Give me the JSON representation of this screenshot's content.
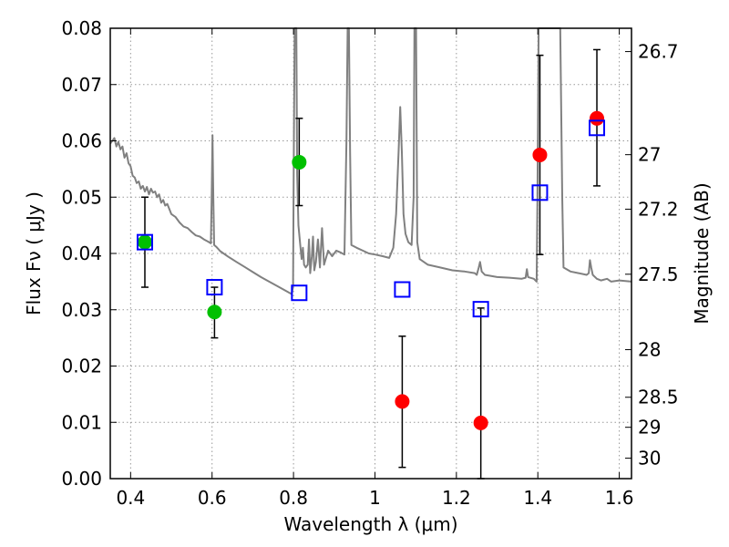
{
  "chart_data": {
    "type": "scatter",
    "xlabel": "Wavelength  λ (μm)",
    "ylabel": "Flux  Fν  ( μJy )",
    "y2label": "Magnitude (AB)",
    "xlim": [
      0.35,
      1.63
    ],
    "ylim": [
      0.0,
      0.08
    ],
    "grid": true,
    "x_ticks": [
      0.4,
      0.6,
      0.8,
      1.0,
      1.2,
      1.4,
      1.6
    ],
    "x_tick_labels": [
      "0.4",
      "0.6",
      "0.8",
      "1",
      "1.2",
      "1.4",
      "1.6"
    ],
    "y_ticks": [
      0.0,
      0.01,
      0.02,
      0.03,
      0.04,
      0.05,
      0.06,
      0.07,
      0.08
    ],
    "y_tick_labels": [
      "0.00",
      "0.01",
      "0.02",
      "0.03",
      "0.04",
      "0.05",
      "0.06",
      "0.07",
      "0.08"
    ],
    "y2_ticks": [
      {
        "label": "26.7",
        "value": 26.7
      },
      {
        "label": "27",
        "value": 27.0
      },
      {
        "label": "27.2",
        "value": 27.2
      },
      {
        "label": "27.5",
        "value": 27.5
      },
      {
        "label": "28",
        "value": 28.0
      },
      {
        "label": "28.5",
        "value": 28.5
      },
      {
        "label": "29",
        "value": 29.0
      },
      {
        "label": "30",
        "value": 30.0
      }
    ],
    "colors": {
      "spectrum": "#808080",
      "green": "#00c000",
      "red": "#ff0000",
      "model_box": "#0000ff",
      "errorbar": "#000000",
      "grid": "#999999"
    },
    "series": [
      {
        "marker": "circle",
        "color": "#00c000",
        "points": [
          {
            "x": 0.435,
            "y": 0.042,
            "ylow": 0.034,
            "yhigh": 0.05
          },
          {
            "x": 0.606,
            "y": 0.0296,
            "ylow": 0.025,
            "yhigh": 0.034
          },
          {
            "x": 0.814,
            "y": 0.0562,
            "ylow": 0.0485,
            "yhigh": 0.064
          }
        ]
      },
      {
        "marker": "circle",
        "color": "#ff0000",
        "points": [
          {
            "x": 1.067,
            "y": 0.0137,
            "ylow": 0.002,
            "yhigh": 0.0253
          },
          {
            "x": 1.26,
            "y": 0.0099,
            "ylow": 0.0,
            "yhigh": 0.0303
          },
          {
            "x": 1.405,
            "y": 0.0575,
            "ylow": 0.0398,
            "yhigh": 0.0752
          },
          {
            "x": 1.545,
            "y": 0.064,
            "ylow": 0.052,
            "yhigh": 0.0762
          }
        ]
      },
      {
        "marker": "open-square",
        "color": "#0000ff",
        "points": [
          {
            "x": 0.435,
            "y": 0.042
          },
          {
            "x": 0.606,
            "y": 0.034
          },
          {
            "x": 0.814,
            "y": 0.033
          },
          {
            "x": 1.067,
            "y": 0.0336
          },
          {
            "x": 1.26,
            "y": 0.0301
          },
          {
            "x": 1.405,
            "y": 0.0508
          },
          {
            "x": 1.545,
            "y": 0.0623
          }
        ]
      }
    ],
    "spectrum": [
      [
        0.35,
        0.0595
      ],
      [
        0.36,
        0.0605
      ],
      [
        0.365,
        0.059
      ],
      [
        0.37,
        0.0598
      ],
      [
        0.375,
        0.0585
      ],
      [
        0.38,
        0.059
      ],
      [
        0.385,
        0.057
      ],
      [
        0.39,
        0.0578
      ],
      [
        0.395,
        0.056
      ],
      [
        0.4,
        0.0555
      ],
      [
        0.405,
        0.0538
      ],
      [
        0.41,
        0.0535
      ],
      [
        0.415,
        0.0525
      ],
      [
        0.42,
        0.0528
      ],
      [
        0.425,
        0.0515
      ],
      [
        0.43,
        0.052
      ],
      [
        0.435,
        0.051
      ],
      [
        0.44,
        0.0518
      ],
      [
        0.445,
        0.0505
      ],
      [
        0.45,
        0.0515
      ],
      [
        0.455,
        0.0508
      ],
      [
        0.46,
        0.051
      ],
      [
        0.465,
        0.05
      ],
      [
        0.47,
        0.0505
      ],
      [
        0.475,
        0.049
      ],
      [
        0.48,
        0.0495
      ],
      [
        0.485,
        0.0485
      ],
      [
        0.49,
        0.0488
      ],
      [
        0.5,
        0.047
      ],
      [
        0.51,
        0.0465
      ],
      [
        0.52,
        0.0455
      ],
      [
        0.53,
        0.0448
      ],
      [
        0.54,
        0.0445
      ],
      [
        0.55,
        0.0438
      ],
      [
        0.56,
        0.0432
      ],
      [
        0.57,
        0.043
      ],
      [
        0.58,
        0.0425
      ],
      [
        0.59,
        0.0421
      ],
      [
        0.597,
        0.0418
      ],
      [
        0.599,
        0.05
      ],
      [
        0.601,
        0.061
      ],
      [
        0.603,
        0.05
      ],
      [
        0.605,
        0.0415
      ],
      [
        0.61,
        0.0412
      ],
      [
        0.62,
        0.0404
      ],
      [
        0.64,
        0.0394
      ],
      [
        0.66,
        0.0385
      ],
      [
        0.68,
        0.0376
      ],
      [
        0.7,
        0.0367
      ],
      [
        0.72,
        0.0358
      ],
      [
        0.74,
        0.035
      ],
      [
        0.76,
        0.0342
      ],
      [
        0.78,
        0.0334
      ],
      [
        0.795,
        0.0328
      ],
      [
        0.799,
        0.034
      ],
      [
        0.801,
        0.06
      ],
      [
        0.803,
        0.08
      ],
      [
        0.807,
        0.08
      ],
      [
        0.809,
        0.054
      ],
      [
        0.812,
        0.045
      ],
      [
        0.816,
        0.042
      ],
      [
        0.82,
        0.039
      ],
      [
        0.823,
        0.041
      ],
      [
        0.826,
        0.038
      ],
      [
        0.83,
        0.0375
      ],
      [
        0.835,
        0.038
      ],
      [
        0.838,
        0.0425
      ],
      [
        0.841,
        0.0365
      ],
      [
        0.845,
        0.0395
      ],
      [
        0.848,
        0.043
      ],
      [
        0.851,
        0.037
      ],
      [
        0.855,
        0.0385
      ],
      [
        0.86,
        0.0425
      ],
      [
        0.865,
        0.0375
      ],
      [
        0.87,
        0.0445
      ],
      [
        0.875,
        0.038
      ],
      [
        0.885,
        0.0405
      ],
      [
        0.895,
        0.0395
      ],
      [
        0.905,
        0.0405
      ],
      [
        0.915,
        0.0402
      ],
      [
        0.925,
        0.0398
      ],
      [
        0.93,
        0.06
      ],
      [
        0.933,
        0.08
      ],
      [
        0.936,
        0.08
      ],
      [
        0.939,
        0.058
      ],
      [
        0.942,
        0.0415
      ],
      [
        0.955,
        0.041
      ],
      [
        0.97,
        0.0405
      ],
      [
        0.985,
        0.04
      ],
      [
        1.0,
        0.0398
      ],
      [
        1.02,
        0.0395
      ],
      [
        1.035,
        0.0392
      ],
      [
        1.045,
        0.041
      ],
      [
        1.052,
        0.047
      ],
      [
        1.058,
        0.058
      ],
      [
        1.062,
        0.066
      ],
      [
        1.066,
        0.058
      ],
      [
        1.07,
        0.047
      ],
      [
        1.075,
        0.0435
      ],
      [
        1.082,
        0.042
      ],
      [
        1.09,
        0.0415
      ],
      [
        1.095,
        0.05
      ],
      [
        1.097,
        0.08
      ],
      [
        1.101,
        0.08
      ],
      [
        1.104,
        0.042
      ],
      [
        1.11,
        0.039
      ],
      [
        1.13,
        0.038
      ],
      [
        1.16,
        0.0375
      ],
      [
        1.19,
        0.037
      ],
      [
        1.22,
        0.0368
      ],
      [
        1.245,
        0.0365
      ],
      [
        1.25,
        0.0362
      ],
      [
        1.255,
        0.0375
      ],
      [
        1.258,
        0.0385
      ],
      [
        1.262,
        0.0368
      ],
      [
        1.27,
        0.0362
      ],
      [
        1.3,
        0.0358
      ],
      [
        1.33,
        0.0357
      ],
      [
        1.36,
        0.0355
      ],
      [
        1.37,
        0.0357
      ],
      [
        1.373,
        0.0372
      ],
      [
        1.376,
        0.0358
      ],
      [
        1.39,
        0.0355
      ],
      [
        1.397,
        0.035
      ],
      [
        1.399,
        0.05
      ],
      [
        1.402,
        0.08
      ],
      [
        1.408,
        0.08
      ],
      [
        1.415,
        0.08
      ],
      [
        1.425,
        0.08
      ],
      [
        1.44,
        0.08
      ],
      [
        1.455,
        0.08
      ],
      [
        1.46,
        0.05
      ],
      [
        1.463,
        0.0375
      ],
      [
        1.48,
        0.0368
      ],
      [
        1.5,
        0.0365
      ],
      [
        1.52,
        0.0362
      ],
      [
        1.525,
        0.0365
      ],
      [
        1.528,
        0.0388
      ],
      [
        1.531,
        0.0375
      ],
      [
        1.535,
        0.0362
      ],
      [
        1.545,
        0.0355
      ],
      [
        1.555,
        0.0352
      ],
      [
        1.57,
        0.0355
      ],
      [
        1.58,
        0.035
      ],
      [
        1.6,
        0.0352
      ],
      [
        1.63,
        0.035
      ]
    ]
  }
}
